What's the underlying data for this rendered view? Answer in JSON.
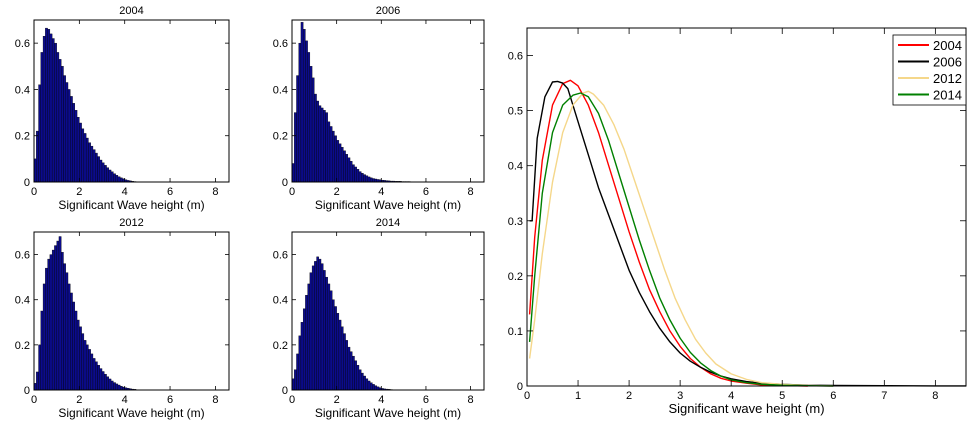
{
  "chart_data": [
    {
      "type": "bar",
      "title": "2004",
      "xlabel": "Significant Wave height (m)",
      "ylabel": "",
      "xlim": [
        0,
        8.6
      ],
      "ylim": [
        0,
        0.7
      ],
      "xticks": [
        0,
        2,
        4,
        6,
        8
      ],
      "yticks": [
        0,
        0.2,
        0.4,
        0.6
      ],
      "bin_width": 0.1,
      "color": "#0b0b8c",
      "x": [
        0.05,
        0.15,
        0.25,
        0.35,
        0.45,
        0.55,
        0.65,
        0.75,
        0.85,
        0.95,
        1.05,
        1.15,
        1.25,
        1.35,
        1.45,
        1.55,
        1.65,
        1.75,
        1.85,
        1.95,
        2.05,
        2.15,
        2.25,
        2.35,
        2.45,
        2.55,
        2.65,
        2.75,
        2.85,
        2.95,
        3.05,
        3.15,
        3.25,
        3.35,
        3.45,
        3.55,
        3.65,
        3.75,
        3.85,
        3.95,
        4.05,
        4.15,
        4.25,
        4.35,
        4.45
      ],
      "values": [
        0.1,
        0.22,
        0.42,
        0.56,
        0.63,
        0.665,
        0.66,
        0.64,
        0.62,
        0.6,
        0.56,
        0.53,
        0.5,
        0.46,
        0.43,
        0.4,
        0.37,
        0.34,
        0.31,
        0.28,
        0.255,
        0.23,
        0.21,
        0.19,
        0.17,
        0.155,
        0.14,
        0.125,
        0.11,
        0.095,
        0.083,
        0.072,
        0.062,
        0.052,
        0.044,
        0.036,
        0.029,
        0.023,
        0.018,
        0.014,
        0.01,
        0.007,
        0.005,
        0.003,
        0.002
      ]
    },
    {
      "type": "bar",
      "title": "2006",
      "xlabel": "Significant Wave height (m)",
      "ylabel": "",
      "xlim": [
        0,
        8.6
      ],
      "ylim": [
        0,
        0.7
      ],
      "xticks": [
        0,
        2,
        4,
        6,
        8
      ],
      "yticks": [
        0,
        0.2,
        0.4,
        0.6
      ],
      "bin_width": 0.1,
      "color": "#0b0b8c",
      "x": [
        0.05,
        0.15,
        0.25,
        0.35,
        0.45,
        0.55,
        0.65,
        0.75,
        0.85,
        0.95,
        1.05,
        1.15,
        1.25,
        1.35,
        1.45,
        1.55,
        1.65,
        1.75,
        1.85,
        1.95,
        2.05,
        2.15,
        2.25,
        2.35,
        2.45,
        2.55,
        2.65,
        2.75,
        2.85,
        2.95,
        3.05,
        3.15,
        3.25,
        3.35,
        3.45,
        3.55,
        3.65,
        3.75,
        3.85,
        3.95,
        4.05,
        4.15,
        4.25,
        4.35,
        4.45,
        4.55,
        4.65,
        4.75,
        4.85,
        4.95,
        5.05,
        5.15,
        5.25,
        5.35
      ],
      "values": [
        0.08,
        0.3,
        0.46,
        0.6,
        0.69,
        0.66,
        0.61,
        0.56,
        0.5,
        0.45,
        0.38,
        0.35,
        0.33,
        0.32,
        0.31,
        0.3,
        0.26,
        0.24,
        0.22,
        0.2,
        0.18,
        0.165,
        0.15,
        0.135,
        0.12,
        0.105,
        0.09,
        0.075,
        0.065,
        0.055,
        0.045,
        0.038,
        0.032,
        0.027,
        0.022,
        0.018,
        0.015,
        0.013,
        0.011,
        0.01,
        0.008,
        0.007,
        0.006,
        0.005,
        0.004,
        0.004,
        0.003,
        0.003,
        0.003,
        0.002,
        0.002,
        0.002,
        0.002,
        0.001
      ]
    },
    {
      "type": "bar",
      "title": "2012",
      "xlabel": "Significant Wave height (m)",
      "ylabel": "",
      "xlim": [
        0,
        8.6
      ],
      "ylim": [
        0,
        0.7
      ],
      "xticks": [
        0,
        2,
        4,
        6,
        8
      ],
      "yticks": [
        0,
        0.2,
        0.4,
        0.6
      ],
      "bin_width": 0.1,
      "color": "#0b0b8c",
      "x": [
        0.05,
        0.15,
        0.25,
        0.35,
        0.45,
        0.55,
        0.65,
        0.75,
        0.85,
        0.95,
        1.05,
        1.15,
        1.25,
        1.35,
        1.45,
        1.55,
        1.65,
        1.75,
        1.85,
        1.95,
        2.05,
        2.15,
        2.25,
        2.35,
        2.45,
        2.55,
        2.65,
        2.75,
        2.85,
        2.95,
        3.05,
        3.15,
        3.25,
        3.35,
        3.45,
        3.55,
        3.65,
        3.75,
        3.85,
        3.95,
        4.05,
        4.15,
        4.25,
        4.35,
        4.45
      ],
      "values": [
        0.03,
        0.08,
        0.2,
        0.35,
        0.47,
        0.54,
        0.58,
        0.6,
        0.62,
        0.64,
        0.66,
        0.68,
        0.61,
        0.56,
        0.52,
        0.47,
        0.43,
        0.39,
        0.35,
        0.31,
        0.28,
        0.25,
        0.22,
        0.2,
        0.18,
        0.16,
        0.14,
        0.125,
        0.11,
        0.095,
        0.082,
        0.07,
        0.059,
        0.049,
        0.04,
        0.033,
        0.027,
        0.022,
        0.017,
        0.013,
        0.01,
        0.008,
        0.006,
        0.004,
        0.003
      ]
    },
    {
      "type": "bar",
      "title": "2014",
      "xlabel": "Significant Wave height (m)",
      "ylabel": "",
      "xlim": [
        0,
        8.6
      ],
      "ylim": [
        0,
        0.7
      ],
      "xticks": [
        0,
        2,
        4,
        6,
        8
      ],
      "yticks": [
        0,
        0.2,
        0.4,
        0.6
      ],
      "bin_width": 0.1,
      "color": "#0b0b8c",
      "x": [
        0.05,
        0.15,
        0.25,
        0.35,
        0.45,
        0.55,
        0.65,
        0.75,
        0.85,
        0.95,
        1.05,
        1.15,
        1.25,
        1.35,
        1.45,
        1.55,
        1.65,
        1.75,
        1.85,
        1.95,
        2.05,
        2.15,
        2.25,
        2.35,
        2.45,
        2.55,
        2.65,
        2.75,
        2.85,
        2.95,
        3.05,
        3.15,
        3.25,
        3.35,
        3.45,
        3.55,
        3.65,
        3.75,
        3.85,
        3.95,
        4.05,
        4.15,
        4.25,
        4.35,
        4.45
      ],
      "values": [
        0.05,
        0.09,
        0.16,
        0.24,
        0.3,
        0.36,
        0.42,
        0.47,
        0.52,
        0.55,
        0.57,
        0.59,
        0.58,
        0.56,
        0.53,
        0.5,
        0.47,
        0.44,
        0.4,
        0.37,
        0.34,
        0.31,
        0.28,
        0.25,
        0.22,
        0.19,
        0.17,
        0.15,
        0.13,
        0.11,
        0.09,
        0.075,
        0.062,
        0.05,
        0.04,
        0.032,
        0.025,
        0.019,
        0.014,
        0.01,
        0.007,
        0.005,
        0.004,
        0.003,
        0.002
      ]
    },
    {
      "type": "line",
      "title": "",
      "xlabel": "Significant wave height (m)",
      "ylabel": "",
      "xlim": [
        0,
        8.6
      ],
      "ylim": [
        0,
        0.65
      ],
      "xticks": [
        0,
        1,
        2,
        3,
        4,
        5,
        6,
        7,
        8
      ],
      "yticks": [
        0,
        0.1,
        0.2,
        0.3,
        0.4,
        0.5,
        0.6
      ],
      "legend_position": "top-right",
      "series": [
        {
          "name": "2004",
          "color": "#ff0000",
          "x": [
            0.05,
            0.15,
            0.3,
            0.5,
            0.7,
            0.85,
            1.0,
            1.2,
            1.4,
            1.6,
            1.8,
            2.0,
            2.2,
            2.4,
            2.6,
            2.8,
            3.0,
            3.2,
            3.4,
            3.6,
            3.8,
            4.0,
            4.3,
            4.6,
            5.0,
            5.5
          ],
          "y": [
            0.13,
            0.27,
            0.41,
            0.51,
            0.549,
            0.555,
            0.545,
            0.51,
            0.46,
            0.4,
            0.34,
            0.28,
            0.225,
            0.175,
            0.135,
            0.1,
            0.072,
            0.05,
            0.034,
            0.022,
            0.014,
            0.009,
            0.005,
            0.002,
            0.001,
            0.0
          ]
        },
        {
          "name": "2006",
          "color": "#000000",
          "x": [
            0.05,
            0.1,
            0.2,
            0.35,
            0.5,
            0.6,
            0.7,
            0.8,
            1.0,
            1.2,
            1.4,
            1.6,
            1.8,
            2.0,
            2.2,
            2.4,
            2.6,
            2.8,
            3.0,
            3.2,
            3.4,
            3.6,
            3.8,
            4.0,
            4.3,
            4.6,
            5.0,
            5.5,
            6.0,
            7.0,
            8.0,
            8.6
          ],
          "y": [
            0.3,
            0.3,
            0.45,
            0.525,
            0.552,
            0.553,
            0.55,
            0.54,
            0.48,
            0.42,
            0.36,
            0.31,
            0.26,
            0.21,
            0.17,
            0.135,
            0.105,
            0.08,
            0.06,
            0.045,
            0.034,
            0.025,
            0.018,
            0.013,
            0.008,
            0.005,
            0.003,
            0.0015,
            0.001,
            0.0005,
            0.0002,
            0.0001
          ]
        },
        {
          "name": "2012",
          "color": "#f5d78a",
          "x": [
            0.05,
            0.15,
            0.3,
            0.5,
            0.7,
            0.9,
            1.1,
            1.2,
            1.3,
            1.5,
            1.7,
            1.9,
            2.1,
            2.3,
            2.5,
            2.7,
            2.9,
            3.1,
            3.3,
            3.5,
            3.7,
            4.0,
            4.3,
            4.6,
            5.0,
            5.5,
            6.0
          ],
          "y": [
            0.05,
            0.12,
            0.24,
            0.37,
            0.46,
            0.51,
            0.532,
            0.535,
            0.53,
            0.51,
            0.475,
            0.43,
            0.375,
            0.32,
            0.265,
            0.21,
            0.16,
            0.12,
            0.085,
            0.06,
            0.04,
            0.022,
            0.012,
            0.006,
            0.003,
            0.001,
            0.0
          ]
        },
        {
          "name": "2014",
          "color": "#008000",
          "x": [
            0.05,
            0.15,
            0.3,
            0.5,
            0.7,
            0.9,
            1.05,
            1.2,
            1.4,
            1.6,
            1.8,
            2.0,
            2.2,
            2.4,
            2.6,
            2.8,
            3.0,
            3.2,
            3.4,
            3.6,
            3.8,
            4.0,
            4.3,
            4.6,
            5.0,
            5.5,
            6.0
          ],
          "y": [
            0.08,
            0.2,
            0.35,
            0.46,
            0.51,
            0.528,
            0.532,
            0.525,
            0.495,
            0.445,
            0.385,
            0.325,
            0.265,
            0.21,
            0.16,
            0.12,
            0.087,
            0.061,
            0.042,
            0.028,
            0.018,
            0.011,
            0.006,
            0.003,
            0.0015,
            0.0005,
            0.0
          ]
        }
      ]
    }
  ]
}
